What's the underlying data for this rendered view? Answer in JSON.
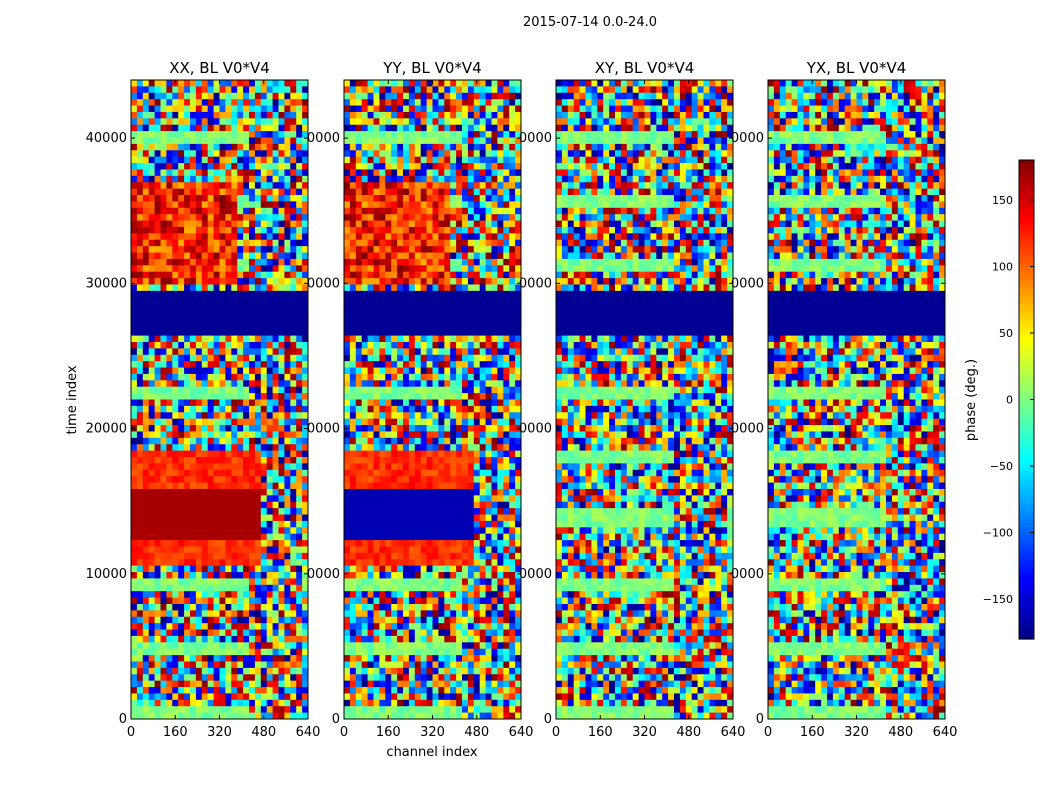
{
  "chart_data": {
    "type": "heatmap",
    "title": "2015-07-14 0.0-24.0",
    "xlabel": "channel index",
    "ylabel": "time index",
    "xlim": [
      0,
      640
    ],
    "ylim": [
      0,
      44000
    ],
    "x_ticks": [
      "0",
      "160",
      "320",
      "480",
      "640"
    ],
    "y_ticks": [
      "0",
      "10000",
      "20000",
      "30000",
      "40000"
    ],
    "panels": [
      {
        "title": "XX, BL V0*V4",
        "y_tick_labels": [
          "0",
          "10000",
          "20000",
          "30000",
          "40000"
        ]
      },
      {
        "title": "YY, BL V0*V4",
        "y_tick_labels": [
          "0",
          "0000",
          "0000",
          "0000",
          "0000"
        ]
      },
      {
        "title": "XY, BL V0*V4",
        "y_tick_labels": [
          "0",
          "0000",
          "0000",
          "0000",
          "0000"
        ]
      },
      {
        "title": "YX, BL V0*V4",
        "y_tick_labels": [
          "0",
          "0000",
          "0000",
          "0000",
          "0000"
        ]
      }
    ],
    "colorbar": {
      "label": "phase (deg.)",
      "range": [
        -180,
        180
      ],
      "ticks": [
        "150",
        "100",
        "50",
        "0",
        "−50",
        "−100",
        "−150"
      ],
      "tick_values": [
        150,
        100,
        50,
        0,
        -50,
        -100,
        -150
      ],
      "colormap": "jet"
    },
    "x_label_panel": 1,
    "y_label_panel": 0
  }
}
